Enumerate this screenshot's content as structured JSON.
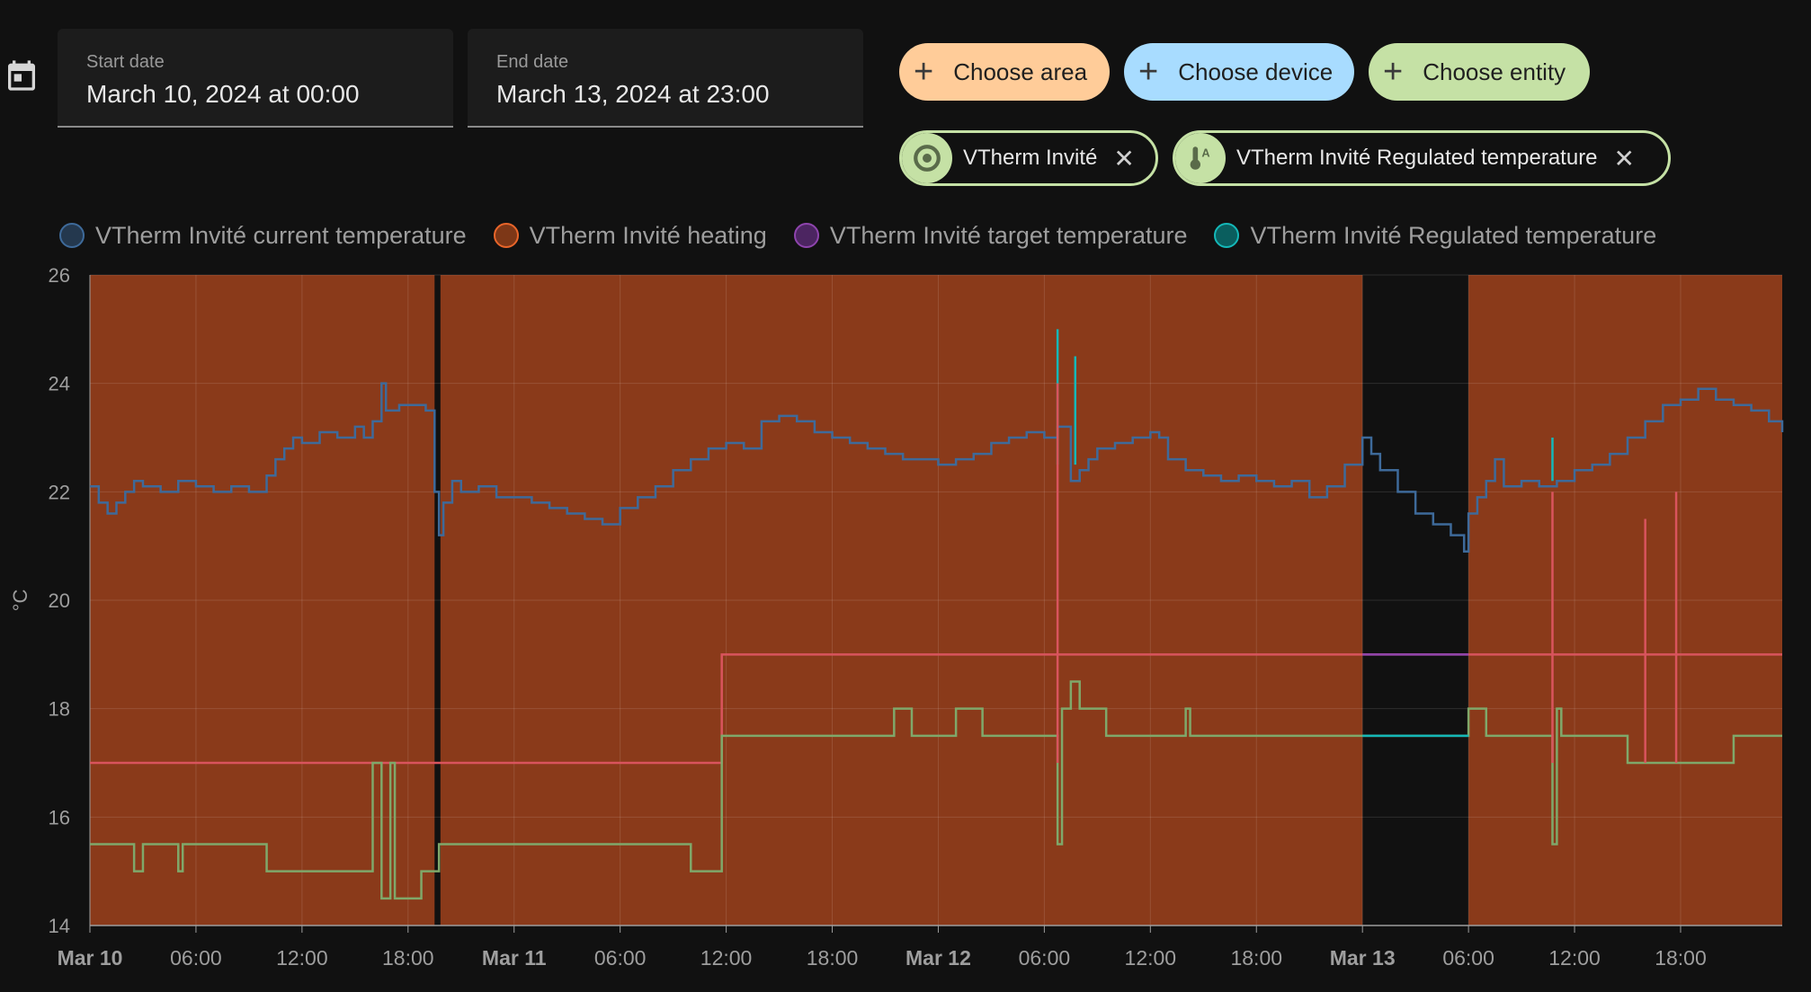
{
  "picker": {
    "start_label": "Start date",
    "start_value": "March 10, 2024 at 00:00",
    "end_label": "End date",
    "end_value": "March 13, 2024 at 23:00",
    "icon": "calendar-icon"
  },
  "targets": {
    "choose_area": "Choose area",
    "choose_device": "Choose device",
    "choose_entity": "Choose entity",
    "area_color": "#ffcc99",
    "device_color": "#a8dcff",
    "entity_color": "#c5e1a5"
  },
  "selected": [
    {
      "label": "VTherm Invité",
      "icon": "thermostat-auto-icon"
    },
    {
      "label": "VTherm Invité Regulated temperature",
      "icon": "thermometer-auto-icon"
    }
  ],
  "legend": [
    {
      "name": "VTherm Invité current temperature",
      "color": "#3e6a9a"
    },
    {
      "name": "VTherm Invité heating",
      "color": "#e8652a"
    },
    {
      "name": "VTherm Invité target temperature",
      "color": "#8e44ad"
    },
    {
      "name": "VTherm Invité Regulated temperature",
      "color": "#14b8b8"
    }
  ],
  "chart_data": {
    "type": "line",
    "ylabel": "°C",
    "ylim": [
      14,
      26
    ],
    "yticks": [
      14,
      16,
      18,
      20,
      22,
      24,
      26
    ],
    "xlim": [
      "2024-03-10T00:00",
      "2024-03-13T23:45"
    ],
    "xticks": [
      {
        "t": "2024-03-10T00:00",
        "label": "Mar 10",
        "bold": true
      },
      {
        "t": "2024-03-10T06:00",
        "label": "06:00"
      },
      {
        "t": "2024-03-10T12:00",
        "label": "12:00"
      },
      {
        "t": "2024-03-10T18:00",
        "label": "18:00"
      },
      {
        "t": "2024-03-11T00:00",
        "label": "Mar 11",
        "bold": true
      },
      {
        "t": "2024-03-11T06:00",
        "label": "06:00"
      },
      {
        "t": "2024-03-11T12:00",
        "label": "12:00"
      },
      {
        "t": "2024-03-11T18:00",
        "label": "18:00"
      },
      {
        "t": "2024-03-12T00:00",
        "label": "Mar 12",
        "bold": true
      },
      {
        "t": "2024-03-12T06:00",
        "label": "06:00"
      },
      {
        "t": "2024-03-12T12:00",
        "label": "12:00"
      },
      {
        "t": "2024-03-12T18:00",
        "label": "18:00"
      },
      {
        "t": "2024-03-13T00:00",
        "label": "Mar 13",
        "bold": true
      },
      {
        "t": "2024-03-13T06:00",
        "label": "06:00"
      },
      {
        "t": "2024-03-13T12:00",
        "label": "12:00"
      },
      {
        "t": "2024-03-13T18:00",
        "label": "18:00"
      }
    ],
    "series": [
      {
        "name": "VTherm Invité current temperature",
        "color": "#3e6a9a",
        "step": true,
        "points": [
          [
            "2024-03-10T00:00",
            22.1
          ],
          [
            "2024-03-10T00:30",
            21.8
          ],
          [
            "2024-03-10T01:00",
            21.6
          ],
          [
            "2024-03-10T01:30",
            21.8
          ],
          [
            "2024-03-10T02:00",
            22.0
          ],
          [
            "2024-03-10T02:30",
            22.2
          ],
          [
            "2024-03-10T03:00",
            22.1
          ],
          [
            "2024-03-10T04:00",
            22.0
          ],
          [
            "2024-03-10T05:00",
            22.2
          ],
          [
            "2024-03-10T06:00",
            22.1
          ],
          [
            "2024-03-10T07:00",
            22.0
          ],
          [
            "2024-03-10T08:00",
            22.1
          ],
          [
            "2024-03-10T09:00",
            22.0
          ],
          [
            "2024-03-10T10:00",
            22.3
          ],
          [
            "2024-03-10T10:30",
            22.6
          ],
          [
            "2024-03-10T11:00",
            22.8
          ],
          [
            "2024-03-10T11:30",
            23.0
          ],
          [
            "2024-03-10T12:00",
            22.9
          ],
          [
            "2024-03-10T13:00",
            23.1
          ],
          [
            "2024-03-10T14:00",
            23.0
          ],
          [
            "2024-03-10T15:00",
            23.2
          ],
          [
            "2024-03-10T15:30",
            23.0
          ],
          [
            "2024-03-10T16:00",
            23.3
          ],
          [
            "2024-03-10T16:30",
            24.0
          ],
          [
            "2024-03-10T16:45",
            23.5
          ],
          [
            "2024-03-10T17:30",
            23.6
          ],
          [
            "2024-03-10T18:30",
            23.6
          ],
          [
            "2024-03-10T19:00",
            23.5
          ],
          [
            "2024-03-10T19:30",
            22.0
          ],
          [
            "2024-03-10T19:45",
            21.2
          ],
          [
            "2024-03-10T20:00",
            21.8
          ],
          [
            "2024-03-10T20:30",
            22.2
          ],
          [
            "2024-03-10T21:00",
            22.0
          ],
          [
            "2024-03-10T22:00",
            22.1
          ],
          [
            "2024-03-10T23:00",
            21.9
          ],
          [
            "2024-03-11T00:00",
            21.9
          ],
          [
            "2024-03-11T01:00",
            21.8
          ],
          [
            "2024-03-11T02:00",
            21.7
          ],
          [
            "2024-03-11T03:00",
            21.6
          ],
          [
            "2024-03-11T04:00",
            21.5
          ],
          [
            "2024-03-11T05:00",
            21.4
          ],
          [
            "2024-03-11T06:00",
            21.7
          ],
          [
            "2024-03-11T07:00",
            21.9
          ],
          [
            "2024-03-11T08:00",
            22.1
          ],
          [
            "2024-03-11T09:00",
            22.4
          ],
          [
            "2024-03-11T10:00",
            22.6
          ],
          [
            "2024-03-11T11:00",
            22.8
          ],
          [
            "2024-03-11T12:00",
            22.9
          ],
          [
            "2024-03-11T13:00",
            22.8
          ],
          [
            "2024-03-11T14:00",
            23.3
          ],
          [
            "2024-03-11T15:00",
            23.4
          ],
          [
            "2024-03-11T16:00",
            23.3
          ],
          [
            "2024-03-11T17:00",
            23.1
          ],
          [
            "2024-03-11T18:00",
            23.0
          ],
          [
            "2024-03-11T19:00",
            22.9
          ],
          [
            "2024-03-11T20:00",
            22.8
          ],
          [
            "2024-03-11T21:00",
            22.7
          ],
          [
            "2024-03-11T22:00",
            22.6
          ],
          [
            "2024-03-11T23:00",
            22.6
          ],
          [
            "2024-03-12T00:00",
            22.5
          ],
          [
            "2024-03-12T01:00",
            22.6
          ],
          [
            "2024-03-12T02:00",
            22.7
          ],
          [
            "2024-03-12T03:00",
            22.9
          ],
          [
            "2024-03-12T04:00",
            23.0
          ],
          [
            "2024-03-12T05:00",
            23.1
          ],
          [
            "2024-03-12T06:00",
            23.0
          ],
          [
            "2024-03-12T06:45",
            23.2
          ],
          [
            "2024-03-12T07:30",
            22.2
          ],
          [
            "2024-03-12T08:00",
            22.4
          ],
          [
            "2024-03-12T08:30",
            22.6
          ],
          [
            "2024-03-12T09:00",
            22.8
          ],
          [
            "2024-03-12T10:00",
            22.9
          ],
          [
            "2024-03-12T11:00",
            23.0
          ],
          [
            "2024-03-12T12:00",
            23.1
          ],
          [
            "2024-03-12T12:30",
            23.0
          ],
          [
            "2024-03-12T13:00",
            22.6
          ],
          [
            "2024-03-12T14:00",
            22.4
          ],
          [
            "2024-03-12T15:00",
            22.3
          ],
          [
            "2024-03-12T16:00",
            22.2
          ],
          [
            "2024-03-12T17:00",
            22.3
          ],
          [
            "2024-03-12T18:00",
            22.2
          ],
          [
            "2024-03-12T19:00",
            22.1
          ],
          [
            "2024-03-12T20:00",
            22.2
          ],
          [
            "2024-03-12T21:00",
            21.9
          ],
          [
            "2024-03-12T22:00",
            22.1
          ],
          [
            "2024-03-12T23:00",
            22.5
          ],
          [
            "2024-03-13T00:00",
            23.0
          ],
          [
            "2024-03-13T00:30",
            22.7
          ],
          [
            "2024-03-13T01:00",
            22.4
          ],
          [
            "2024-03-13T02:00",
            22.0
          ],
          [
            "2024-03-13T03:00",
            21.6
          ],
          [
            "2024-03-13T04:00",
            21.4
          ],
          [
            "2024-03-13T05:00",
            21.2
          ],
          [
            "2024-03-13T05:45",
            20.9
          ],
          [
            "2024-03-13T06:00",
            21.6
          ],
          [
            "2024-03-13T06:30",
            21.9
          ],
          [
            "2024-03-13T07:00",
            22.2
          ],
          [
            "2024-03-13T07:30",
            22.6
          ],
          [
            "2024-03-13T08:00",
            22.1
          ],
          [
            "2024-03-13T09:00",
            22.2
          ],
          [
            "2024-03-13T10:00",
            22.1
          ],
          [
            "2024-03-13T11:00",
            22.2
          ],
          [
            "2024-03-13T12:00",
            22.4
          ],
          [
            "2024-03-13T13:00",
            22.5
          ],
          [
            "2024-03-13T14:00",
            22.7
          ],
          [
            "2024-03-13T15:00",
            23.0
          ],
          [
            "2024-03-13T16:00",
            23.3
          ],
          [
            "2024-03-13T17:00",
            23.6
          ],
          [
            "2024-03-13T18:00",
            23.7
          ],
          [
            "2024-03-13T19:00",
            23.9
          ],
          [
            "2024-03-13T20:00",
            23.7
          ],
          [
            "2024-03-13T21:00",
            23.6
          ],
          [
            "2024-03-13T22:00",
            23.5
          ],
          [
            "2024-03-13T23:00",
            23.3
          ],
          [
            "2024-03-13T23:45",
            23.1
          ]
        ]
      },
      {
        "name": "VTherm Invité heating",
        "color": "#e8652a",
        "type": "area",
        "heating_on": [
          [
            "2024-03-10T00:00",
            "2024-03-10T19:30"
          ],
          [
            "2024-03-10T19:50",
            "2024-03-13T00:00"
          ],
          [
            "2024-03-13T06:00",
            "2024-03-13T23:45"
          ]
        ]
      },
      {
        "name": "VTherm Invité target temperature",
        "color": "#8e44ad",
        "step": true,
        "points": [
          [
            "2024-03-10T00:00",
            17.0
          ],
          [
            "2024-03-11T11:45",
            19.0
          ],
          [
            "2024-03-13T23:45",
            19.0
          ]
        ]
      },
      {
        "name": "VTherm Invité Regulated temperature",
        "color": "#14b8b8",
        "step": true,
        "points": [
          [
            "2024-03-10T00:00",
            15.5
          ],
          [
            "2024-03-10T02:30",
            15.0
          ],
          [
            "2024-03-10T03:00",
            15.5
          ],
          [
            "2024-03-10T05:00",
            15.0
          ],
          [
            "2024-03-10T05:15",
            15.5
          ],
          [
            "2024-03-10T10:00",
            15.0
          ],
          [
            "2024-03-10T16:00",
            17.0
          ],
          [
            "2024-03-10T16:30",
            14.5
          ],
          [
            "2024-03-10T17:00",
            17.0
          ],
          [
            "2024-03-10T17:15",
            14.5
          ],
          [
            "2024-03-10T18:45",
            15.0
          ],
          [
            "2024-03-10T19:45",
            15.5
          ],
          [
            "2024-03-11T03:00",
            15.5
          ],
          [
            "2024-03-11T10:00",
            15.0
          ],
          [
            "2024-03-11T11:45",
            17.5
          ],
          [
            "2024-03-11T21:30",
            18.0
          ],
          [
            "2024-03-11T22:30",
            17.5
          ],
          [
            "2024-03-12T01:00",
            18.0
          ],
          [
            "2024-03-12T02:30",
            17.5
          ],
          [
            "2024-03-12T06:45",
            15.5
          ],
          [
            "2024-03-12T07:00",
            18.0
          ],
          [
            "2024-03-12T07:30",
            18.5
          ],
          [
            "2024-03-12T08:00",
            18.0
          ],
          [
            "2024-03-12T09:30",
            17.5
          ],
          [
            "2024-03-12T14:00",
            18.0
          ],
          [
            "2024-03-12T14:15",
            17.5
          ],
          [
            "2024-03-13T06:00",
            18.0
          ],
          [
            "2024-03-13T07:00",
            17.5
          ],
          [
            "2024-03-13T10:45",
            15.5
          ],
          [
            "2024-03-13T11:00",
            18.0
          ],
          [
            "2024-03-13T11:15",
            17.5
          ],
          [
            "2024-03-13T15:00",
            17.0
          ],
          [
            "2024-03-13T21:00",
            17.5
          ],
          [
            "2024-03-13T23:45",
            17.5
          ]
        ]
      }
    ]
  }
}
